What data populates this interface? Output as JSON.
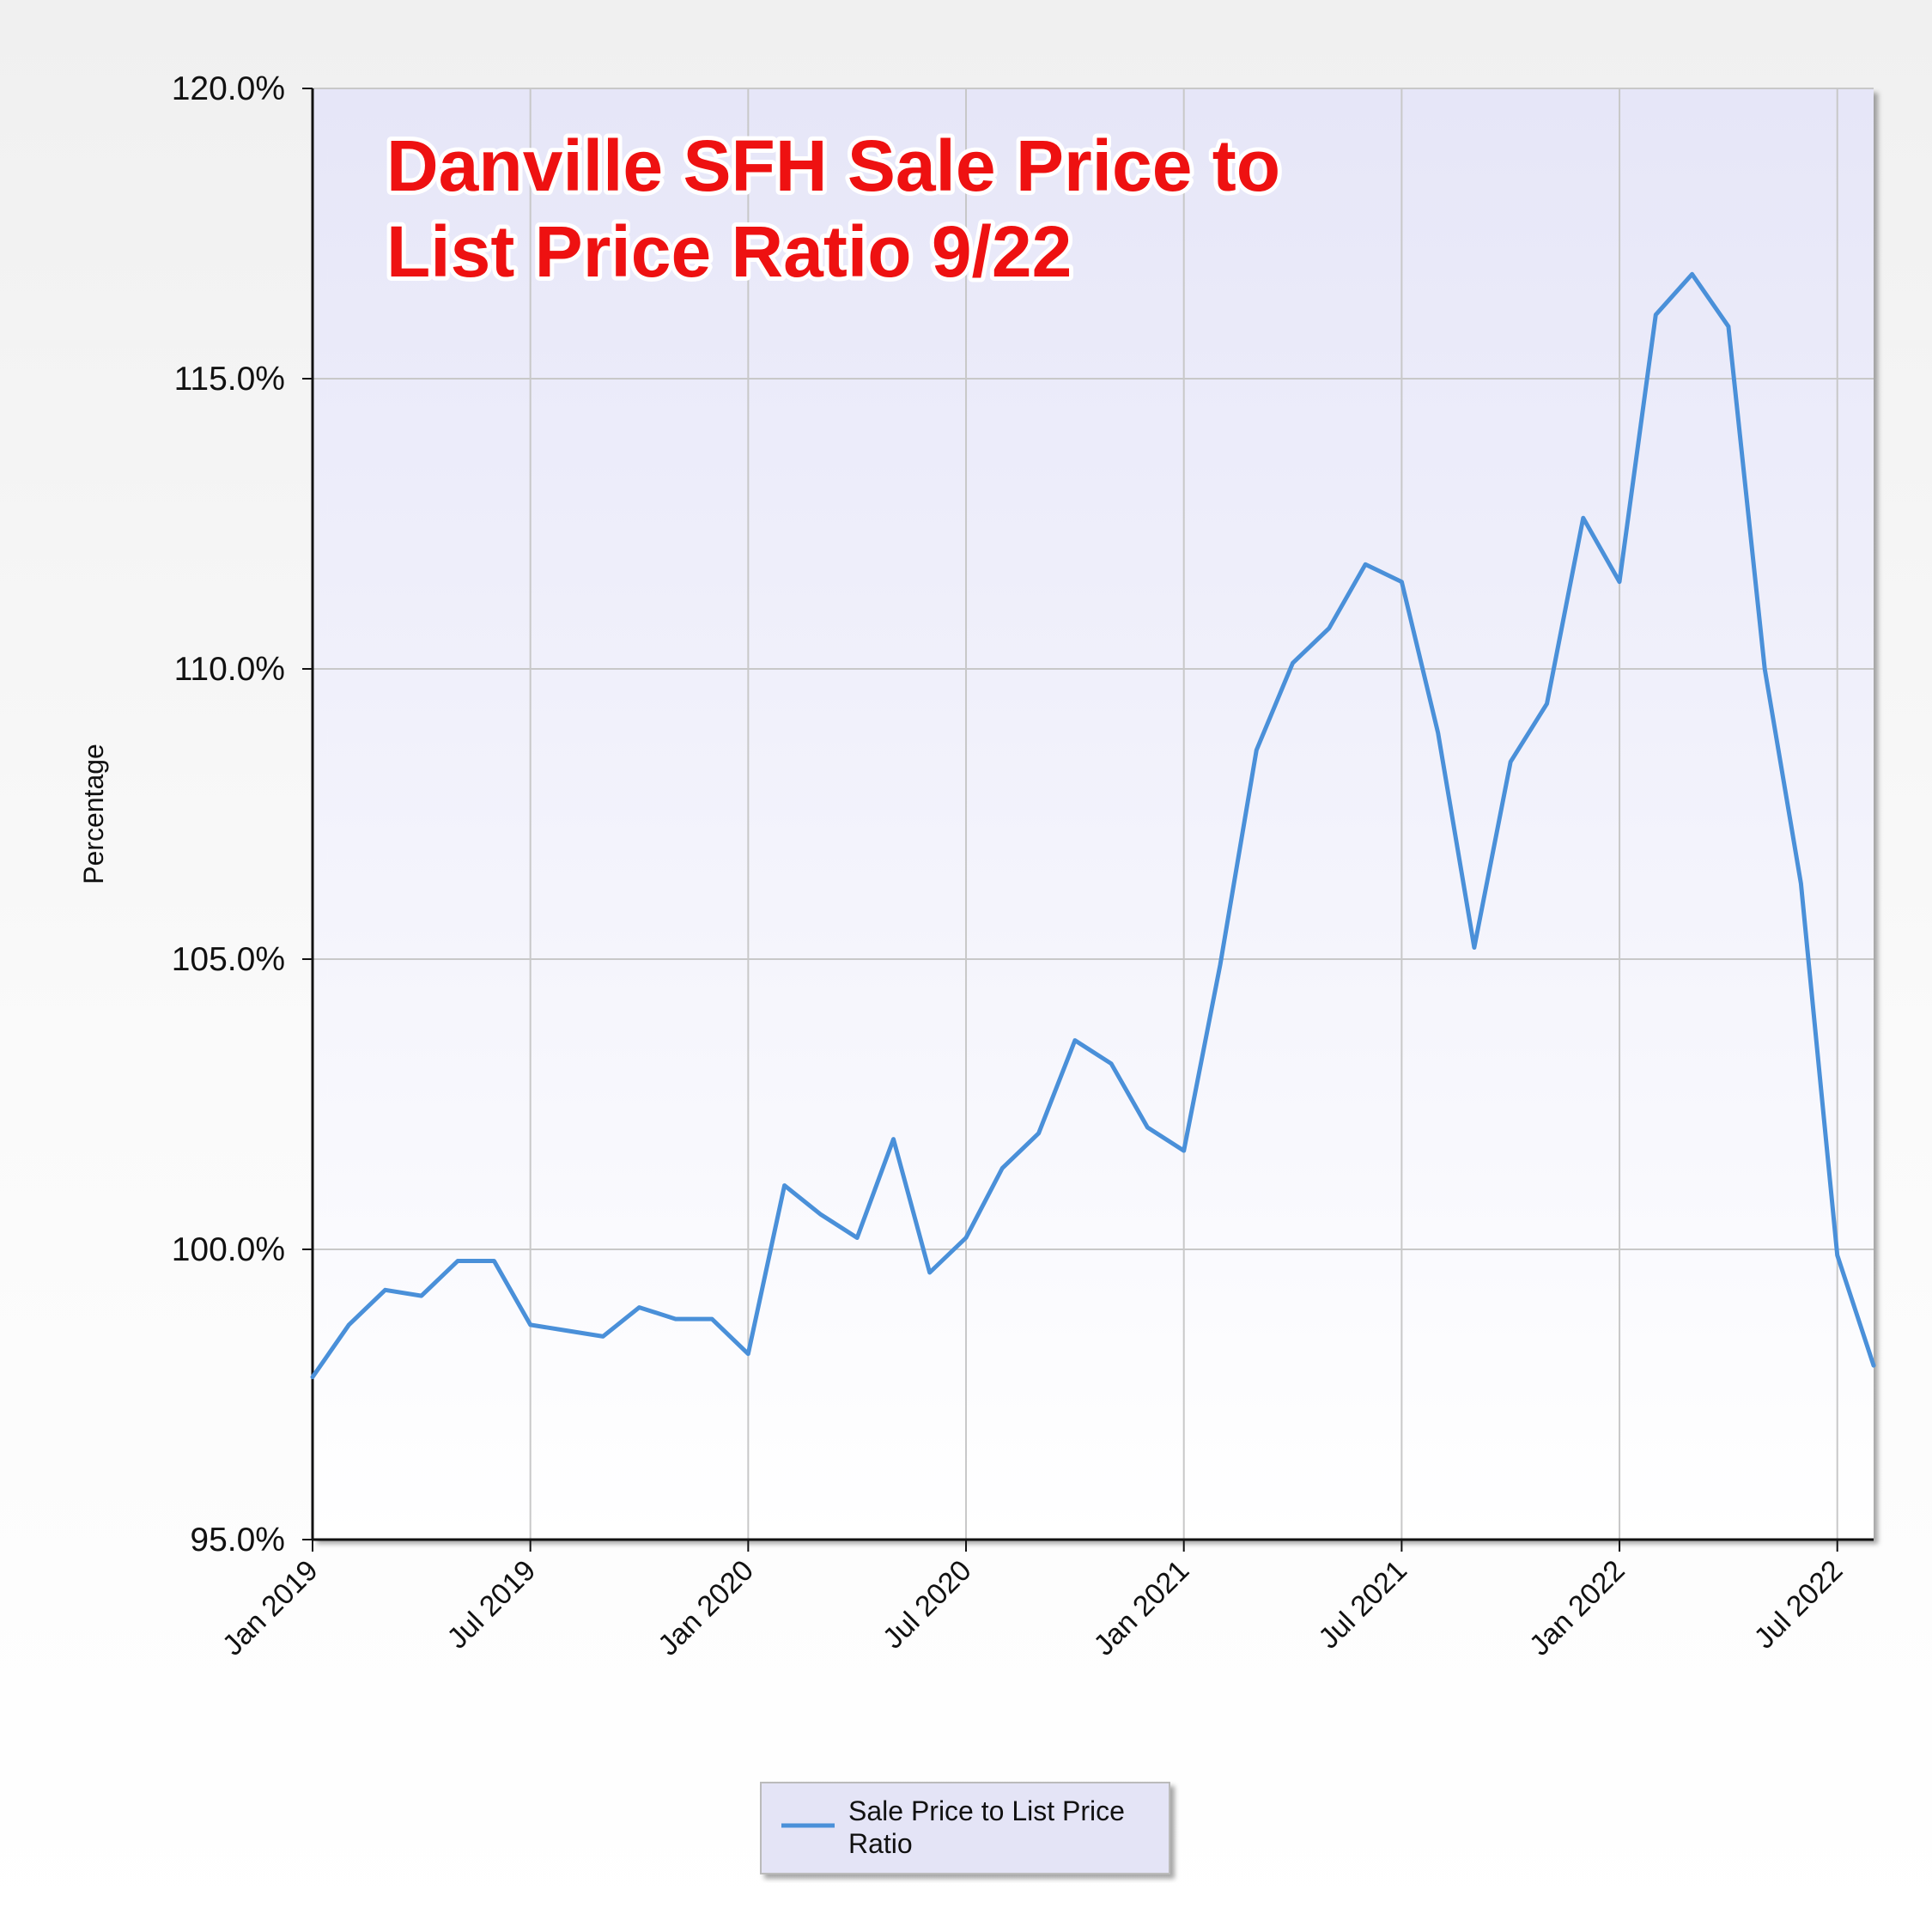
{
  "chart_data": {
    "type": "line",
    "title_lines": [
      "Danville SFH Sale Price to",
      "List Price Ratio 9/22"
    ],
    "ylabel": "Percentage",
    "xlabel": "",
    "ylim": [
      95.0,
      120.0
    ],
    "y_ticks": [
      "95.0%",
      "100.0%",
      "105.0%",
      "110.0%",
      "115.0%",
      "120.0%"
    ],
    "y_tick_values": [
      95,
      100,
      105,
      110,
      115,
      120
    ],
    "x_range": [
      "2019-01",
      "2022-08"
    ],
    "x_ticks": [
      {
        "label": "Jan 2019",
        "date": "2019-01"
      },
      {
        "label": "Jul 2019",
        "date": "2019-07"
      },
      {
        "label": "Jan 2020",
        "date": "2020-01"
      },
      {
        "label": "Jul 2020",
        "date": "2020-07"
      },
      {
        "label": "Jan 2021",
        "date": "2021-01"
      },
      {
        "label": "Jul 2021",
        "date": "2021-07"
      },
      {
        "label": "Jan 2022",
        "date": "2022-01"
      },
      {
        "label": "Jul 2022",
        "date": "2022-07"
      }
    ],
    "grid": true,
    "legend_position": "bottom",
    "series": [
      {
        "name": "Sale Price to List Price Ratio",
        "color": "#4a90d9",
        "x": [
          "2019-01",
          "2019-02",
          "2019-03",
          "2019-04",
          "2019-05",
          "2019-06",
          "2019-07",
          "2019-08",
          "2019-09",
          "2019-10",
          "2019-11",
          "2019-12",
          "2020-01",
          "2020-02",
          "2020-03",
          "2020-04",
          "2020-05",
          "2020-06",
          "2020-07",
          "2020-08",
          "2020-09",
          "2020-10",
          "2020-11",
          "2020-12",
          "2021-01",
          "2021-02",
          "2021-03",
          "2021-04",
          "2021-05",
          "2021-06",
          "2021-07",
          "2021-08",
          "2021-09",
          "2021-10",
          "2021-11",
          "2021-12",
          "2022-01",
          "2022-02",
          "2022-03",
          "2022-04",
          "2022-05",
          "2022-06",
          "2022-07",
          "2022-08"
        ],
        "values": [
          97.8,
          98.7,
          99.3,
          99.2,
          99.8,
          99.8,
          98.7,
          98.6,
          98.5,
          99.0,
          98.8,
          98.8,
          98.2,
          101.1,
          100.6,
          100.2,
          101.9,
          99.6,
          100.2,
          101.4,
          102.0,
          103.6,
          103.2,
          102.1,
          101.7,
          104.9,
          108.6,
          110.1,
          110.7,
          111.8,
          111.5,
          108.9,
          105.2,
          108.4,
          109.4,
          112.6,
          111.5,
          116.1,
          116.8,
          115.9,
          110.0,
          106.3,
          99.9,
          98.0
        ]
      }
    ],
    "colors": {
      "line": "#4a90d9",
      "title": "#ee1111",
      "plot_bg_top": "#e6e6f8",
      "plot_bg_bottom": "#ffffff",
      "grid": "#c8c8c8",
      "legend_bg": "#e4e4f6"
    }
  },
  "legend": {
    "label_line1": "Sale Price to List Price",
    "label_line2": "Ratio"
  }
}
